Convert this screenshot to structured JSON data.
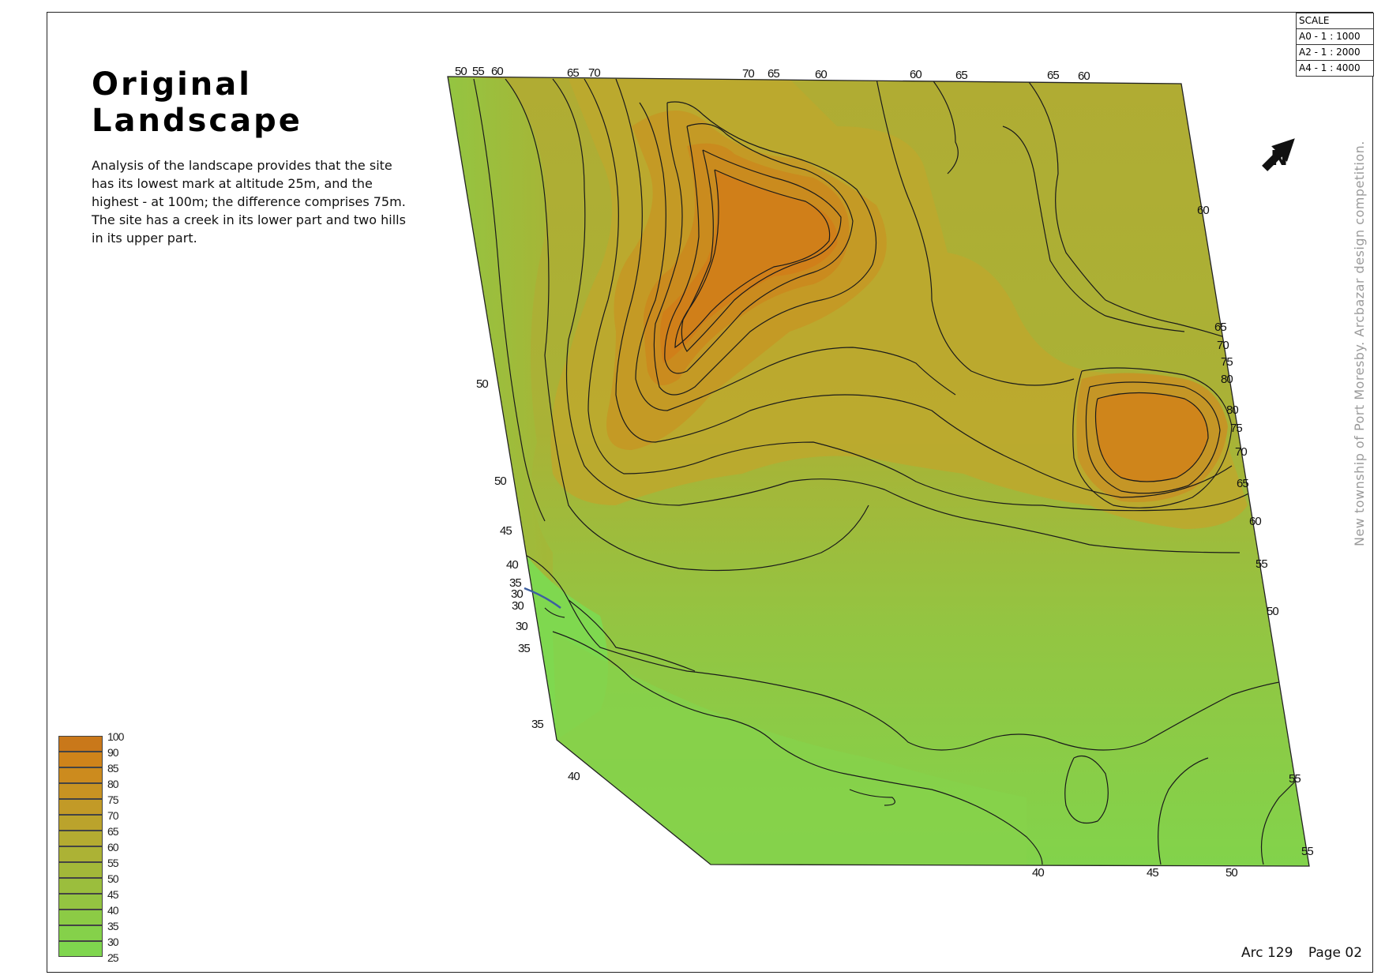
{
  "page": {
    "title_line1": "Original",
    "title_line2": "Landscape",
    "description": "Analysis of the landscape provides that the site has its lowest mark at altitude 25m, and the highest - at 100m; the difference comprises 75m. The site has a creek in its lower part and two hills in its upper part.",
    "side_text": "New township of Port Moresby.   Arcbazar design competition.",
    "footer_ref": "Arc 129",
    "footer_page": "Page 02"
  },
  "scale": {
    "header": "SCALE",
    "rows": [
      "A0 - 1 : 1000",
      "A2 - 1 : 2000",
      "A4 - 1 : 4000"
    ]
  },
  "north_arrow": {
    "icon": "north-arrow-icon",
    "letter": "N"
  },
  "legend": {
    "labels": [
      "100",
      "90",
      "85",
      "80",
      "75",
      "70",
      "65",
      "60",
      "55",
      "50",
      "45",
      "40",
      "35",
      "30",
      "25"
    ],
    "colors": [
      "#c9781a",
      "#cf841a",
      "#cc8b1e",
      "#c89322",
      "#c29a27",
      "#bba32c",
      "#b4ab31",
      "#acb235",
      "#a3b839",
      "#9bbe3d",
      "#94c441",
      "#8ccb45",
      "#85d14a",
      "#7fd64e",
      "#78dc53"
    ]
  },
  "contour_labels": {
    "top": [
      "50",
      "55",
      "60",
      "65",
      "70",
      "70",
      "65",
      "60",
      "60",
      "65",
      "65",
      "60"
    ],
    "right": [
      "60",
      "65",
      "70",
      "75",
      "80",
      "80",
      "75",
      "70",
      "65",
      "60",
      "55",
      "50",
      "55",
      "55"
    ],
    "left": [
      "50",
      "50",
      "45",
      "40",
      "35",
      "30",
      "30",
      "30",
      "35",
      "35",
      "40"
    ],
    "bottom": [
      "40",
      "45",
      "50"
    ]
  }
}
